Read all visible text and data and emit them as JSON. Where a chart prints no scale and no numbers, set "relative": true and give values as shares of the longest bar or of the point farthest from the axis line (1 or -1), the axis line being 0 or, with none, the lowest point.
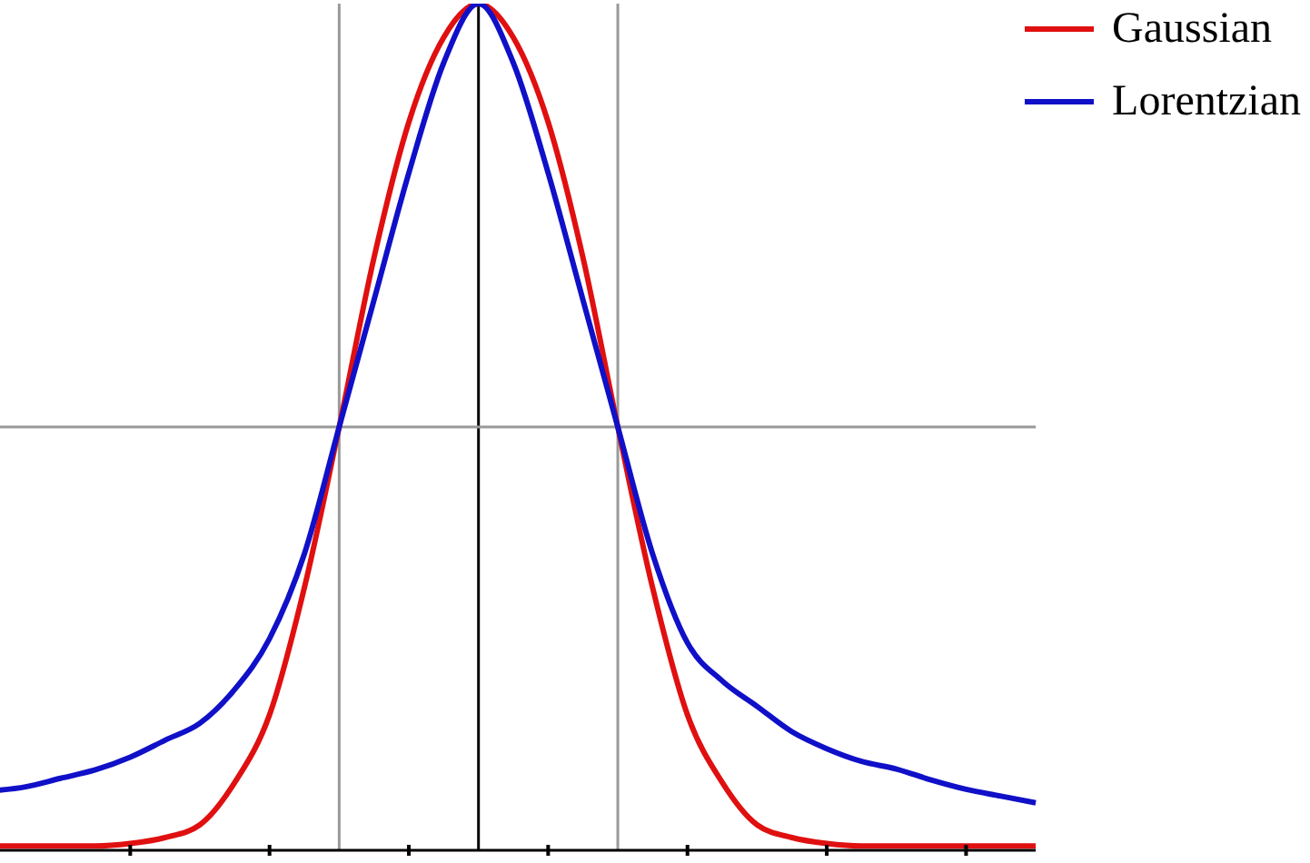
{
  "chart_data": {
    "type": "line",
    "relative": true,
    "categories": [
      null,
      null,
      null,
      null,
      null,
      null,
      null,
      null,
      null,
      null,
      null,
      null,
      null,
      null,
      null,
      null,
      null,
      null,
      null,
      null,
      null,
      null,
      null,
      null,
      null,
      null,
      null,
      null,
      null,
      null,
      null
    ],
    "series": [
      {
        "name": "Gaussian",
        "color": "#e01010",
        "values": [
          0.005,
          0.005,
          0.005,
          0.005,
          0.008,
          0.015,
          0.03,
          0.08,
          0.16,
          0.31,
          0.5,
          0.7,
          0.86,
          0.96,
          1,
          0.96,
          0.86,
          0.7,
          0.5,
          0.31,
          0.16,
          0.08,
          0.03,
          0.015,
          0.008,
          0.005,
          0.005,
          0.005,
          0.005,
          0.005,
          0.005
        ]
      },
      {
        "name": "Lorentzian",
        "color": "#1010c8",
        "values": [
          0.07,
          0.075,
          0.085,
          0.095,
          0.11,
          0.13,
          0.15,
          0.19,
          0.25,
          0.35,
          0.5,
          0.65,
          0.8,
          0.93,
          1,
          0.93,
          0.8,
          0.65,
          0.5,
          0.35,
          0.245,
          0.2,
          0.17,
          0.14,
          0.12,
          0.105,
          0.096,
          0.083,
          0.072,
          0.064,
          0.056
        ]
      }
    ],
    "ref_lines": [
      {
        "axis": "y",
        "value": 0.5,
        "color": "#999999"
      }
    ],
    "legend": "top right",
    "marker": "none",
    "line_style": "solid"
  }
}
